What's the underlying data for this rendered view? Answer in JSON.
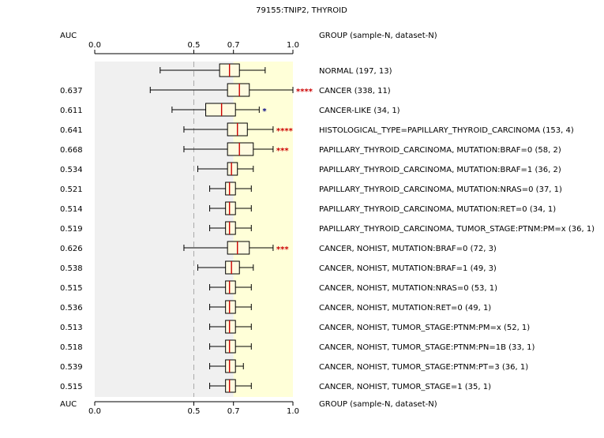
{
  "chart_data": {
    "type": "boxplot",
    "title": "79155:TNIP2, THYROID",
    "auc_label": "AUC",
    "group_label": "GROUP (sample-N, dataset-N)",
    "xlim": [
      0.0,
      1.0
    ],
    "ticks": [
      {
        "value": 0.0,
        "label": "0.0"
      },
      {
        "value": 0.5,
        "label": "0.5"
      },
      {
        "value": 0.7,
        "label": "0.7"
      },
      {
        "value": 1.0,
        "label": "1.0"
      }
    ],
    "reference_line": 0.5,
    "shaded_regions": [
      {
        "from": 0.0,
        "to": 0.5,
        "color": "#f0f0f0"
      },
      {
        "from": 0.5,
        "to": 0.7,
        "color": "#f0f0f0"
      },
      {
        "from": 0.7,
        "to": 1.0,
        "color": "#ffffd8"
      }
    ],
    "colors": {
      "red": "#cc0000",
      "blue": "#000080",
      "black": "#000000",
      "median": "#cc0000"
    },
    "groups": [
      {
        "label": "NORMAL (197, 13)",
        "auc": "",
        "color": "black",
        "stars": "",
        "min": 0.33,
        "q1": 0.63,
        "median": 0.68,
        "q3": 0.73,
        "max": 0.86
      },
      {
        "label": "CANCER (338, 11)",
        "auc": "0.637",
        "color": "red",
        "stars": "****",
        "min": 0.28,
        "q1": 0.67,
        "median": 0.73,
        "q3": 0.78,
        "max": 1.0
      },
      {
        "label": "CANCER-LIKE (34, 1)",
        "auc": "0.611",
        "color": "blue",
        "stars": "*",
        "min": 0.39,
        "q1": 0.56,
        "median": 0.64,
        "q3": 0.71,
        "max": 0.83
      },
      {
        "label": "HISTOLOGICAL_TYPE=PAPILLARY_THYROID_CARCINOMA (153, 4)",
        "auc": "0.641",
        "color": "red",
        "stars": "****",
        "min": 0.45,
        "q1": 0.67,
        "median": 0.72,
        "q3": 0.77,
        "max": 0.9
      },
      {
        "label": "PAPILLARY_THYROID_CARCINOMA, MUTATION:BRAF=0 (58, 2)",
        "auc": "0.668",
        "color": "red",
        "stars": "***",
        "min": 0.45,
        "q1": 0.67,
        "median": 0.73,
        "q3": 0.8,
        "max": 0.9
      },
      {
        "label": "PAPILLARY_THYROID_CARCINOMA, MUTATION:BRAF=1 (36, 2)",
        "auc": "0.534",
        "color": "black",
        "stars": "",
        "min": 0.52,
        "q1": 0.67,
        "median": 0.69,
        "q3": 0.72,
        "max": 0.8
      },
      {
        "label": "PAPILLARY_THYROID_CARCINOMA, MUTATION:NRAS=0 (37, 1)",
        "auc": "0.521",
        "color": "black",
        "stars": "",
        "min": 0.58,
        "q1": 0.66,
        "median": 0.68,
        "q3": 0.71,
        "max": 0.79
      },
      {
        "label": "PAPILLARY_THYROID_CARCINOMA, MUTATION:RET=0 (34, 1)",
        "auc": "0.514",
        "color": "black",
        "stars": "",
        "min": 0.58,
        "q1": 0.66,
        "median": 0.68,
        "q3": 0.71,
        "max": 0.79
      },
      {
        "label": "PAPILLARY_THYROID_CARCINOMA, TUMOR_STAGE:PTNM:PM=x (36, 1)",
        "auc": "0.519",
        "color": "black",
        "stars": "",
        "min": 0.58,
        "q1": 0.66,
        "median": 0.68,
        "q3": 0.71,
        "max": 0.79
      },
      {
        "label": "CANCER, NOHIST, MUTATION:BRAF=0 (72, 3)",
        "auc": "0.626",
        "color": "red",
        "stars": "***",
        "min": 0.45,
        "q1": 0.67,
        "median": 0.72,
        "q3": 0.78,
        "max": 0.9
      },
      {
        "label": "CANCER, NOHIST, MUTATION:BRAF=1 (49, 3)",
        "auc": "0.538",
        "color": "black",
        "stars": "",
        "min": 0.52,
        "q1": 0.66,
        "median": 0.69,
        "q3": 0.73,
        "max": 0.8
      },
      {
        "label": "CANCER, NOHIST, MUTATION:NRAS=0 (53, 1)",
        "auc": "0.515",
        "color": "black",
        "stars": "",
        "min": 0.58,
        "q1": 0.66,
        "median": 0.68,
        "q3": 0.71,
        "max": 0.79
      },
      {
        "label": "CANCER, NOHIST, MUTATION:RET=0 (49, 1)",
        "auc": "0.536",
        "color": "black",
        "stars": "",
        "min": 0.58,
        "q1": 0.66,
        "median": 0.68,
        "q3": 0.71,
        "max": 0.79
      },
      {
        "label": "CANCER, NOHIST, TUMOR_STAGE:PTNM:PM=x (52, 1)",
        "auc": "0.513",
        "color": "black",
        "stars": "",
        "min": 0.58,
        "q1": 0.66,
        "median": 0.68,
        "q3": 0.71,
        "max": 0.79
      },
      {
        "label": "CANCER, NOHIST, TUMOR_STAGE:PTNM:PN=1B (33, 1)",
        "auc": "0.518",
        "color": "black",
        "stars": "",
        "min": 0.58,
        "q1": 0.66,
        "median": 0.68,
        "q3": 0.71,
        "max": 0.79
      },
      {
        "label": "CANCER, NOHIST, TUMOR_STAGE:PTNM:PT=3 (36, 1)",
        "auc": "0.539",
        "color": "black",
        "stars": "",
        "min": 0.58,
        "q1": 0.66,
        "median": 0.68,
        "q3": 0.71,
        "max": 0.75
      },
      {
        "label": "CANCER, NOHIST, TUMOR_STAGE=1 (35, 1)",
        "auc": "0.515",
        "color": "black",
        "stars": "",
        "min": 0.58,
        "q1": 0.66,
        "median": 0.68,
        "q3": 0.71,
        "max": 0.79
      }
    ]
  }
}
